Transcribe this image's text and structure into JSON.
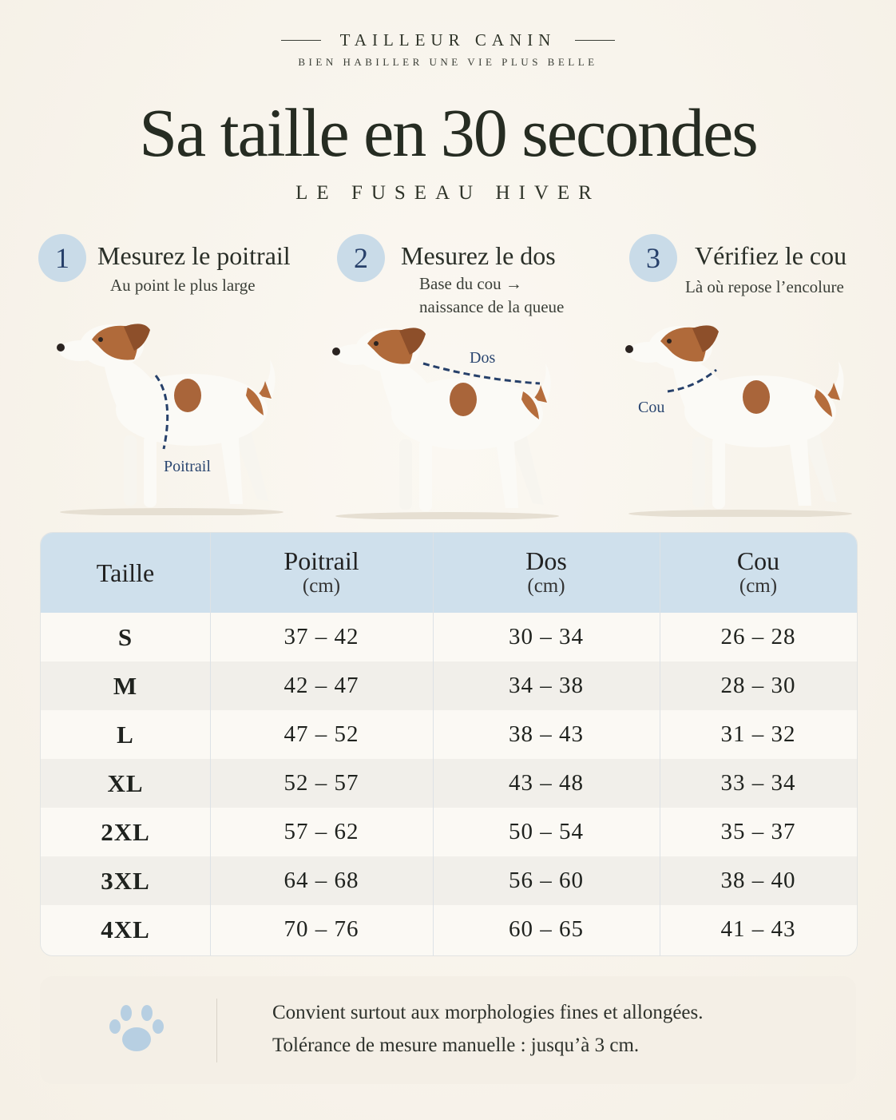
{
  "brand": {
    "name": "TAILLEUR CANIN",
    "tagline": "BIEN HABILLER UNE VIE PLUS BELLE"
  },
  "title": "Sa taille en 30 secondes",
  "subtitle": "LE FUSEAU HIVER",
  "steps": [
    {
      "number": "1",
      "title": "Mesurez le poitrail",
      "lines": [
        "Au point le plus large"
      ],
      "measure_label": "Poitrail"
    },
    {
      "number": "2",
      "title": "Mesurez le dos",
      "lines": [
        "Base du cou →",
        "naissance de la queue"
      ],
      "measure_label": "Dos"
    },
    {
      "number": "3",
      "title": "Vérifiez le cou",
      "lines": [
        "Là où repose l’encolure"
      ],
      "measure_label": "Cou"
    }
  ],
  "table": {
    "columns": [
      {
        "label": "Taille"
      },
      {
        "label": "Poitrail",
        "unit": "(cm)"
      },
      {
        "label": "Dos",
        "unit": "(cm)"
      },
      {
        "label": "Cou",
        "unit": "(cm)"
      }
    ],
    "rows": [
      [
        "S",
        "37 – 42",
        "30 – 34",
        "26 – 28"
      ],
      [
        "M",
        "42 – 47",
        "34 – 38",
        "28 – 30"
      ],
      [
        "L",
        "47 – 52",
        "38 – 43",
        "31 – 32"
      ],
      [
        "XL",
        "52 – 57",
        "43 – 48",
        "33 – 34"
      ],
      [
        "2XL",
        "57 – 62",
        "50 – 54",
        "35 – 37"
      ],
      [
        "3XL",
        "64 – 68",
        "56 – 60",
        "38 – 40"
      ],
      [
        "4XL",
        "70 – 76",
        "60 – 65",
        "41 – 43"
      ]
    ]
  },
  "notes": [
    "Convient surtout aux morphologies fines et allongées.",
    "Tolérance de mesure manuelle : jusqu’à 3 cm."
  ]
}
